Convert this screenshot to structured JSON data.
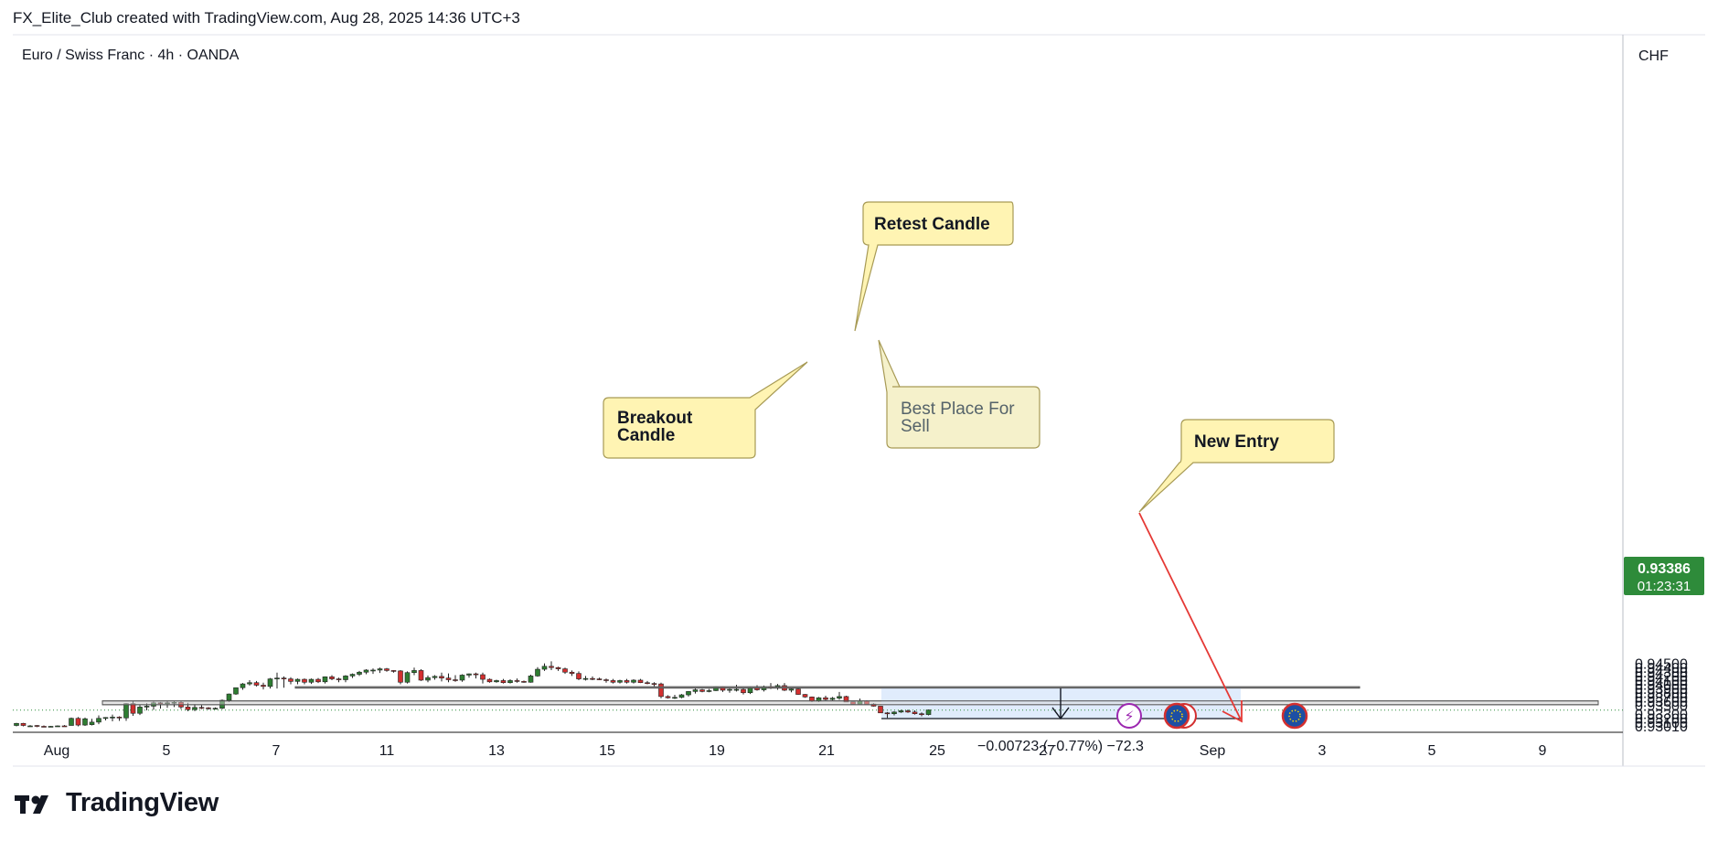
{
  "header": {
    "attribution": "FX_Elite_Club created with TradingView.com, Aug 28, 2025 14:36 UTC+3"
  },
  "symbol": {
    "title": "Euro / Swiss Franc · 4h · OANDA"
  },
  "price_axis": {
    "currency": "CHF",
    "ticks": [
      "0.94500",
      "0.94400",
      "0.94300",
      "0.94200",
      "0.94100",
      "0.94000",
      "0.93900",
      "0.93800",
      "0.93700",
      "0.93600",
      "0.93500",
      "0.93300",
      "0.93200",
      "0.93100",
      "0.93010"
    ],
    "last_price": "0.93386",
    "countdown": "01:23:31"
  },
  "time_axis": {
    "ticks": [
      "Aug",
      "5",
      "7",
      "11",
      "13",
      "15",
      "19",
      "21",
      "25",
      "27",
      "Sep",
      "3",
      "5",
      "9"
    ]
  },
  "annotations": {
    "retest": "Retest Candle",
    "breakout": [
      "Breakout",
      "Candle"
    ],
    "best_place": [
      "Best Place For",
      "Sell"
    ],
    "new_entry": "New Entry",
    "measure": "−0.00723 (−0.77%) −72.3"
  },
  "brand": {
    "name": "TradingView"
  },
  "colors": {
    "up": "#2e7d32",
    "down": "#d32f2f",
    "zone_fill": "#e6e6e6",
    "position_fill": "#dbe9fb",
    "callout_fill": "#fff4b3",
    "last_price": "#2e8b3a",
    "arrow": "#e53935"
  },
  "chart_data": {
    "type": "candlestick",
    "title": "Euro / Swiss Franc · 4h · OANDA",
    "ylim": [
      0.93,
      0.9456
    ],
    "candles": [
      [
        0.9302,
        0.9308,
        0.93,
        0.9307
      ],
      [
        0.9307,
        0.9308,
        0.93,
        0.9302
      ],
      [
        0.93,
        0.9303,
        0.9299,
        0.9301
      ],
      [
        0.9302,
        0.9303,
        0.9298,
        0.9301
      ],
      [
        0.93,
        0.9302,
        0.9298,
        0.9299
      ],
      [
        0.9299,
        0.9301,
        0.9298,
        0.93
      ],
      [
        0.93,
        0.9302,
        0.9299,
        0.9301
      ],
      [
        0.9301,
        0.9303,
        0.9299,
        0.93
      ],
      [
        0.9302,
        0.9321,
        0.9302,
        0.9319
      ],
      [
        0.9319,
        0.9322,
        0.93,
        0.9303
      ],
      [
        0.9303,
        0.9321,
        0.9301,
        0.9318
      ],
      [
        0.9304,
        0.9318,
        0.9302,
        0.931
      ],
      [
        0.931,
        0.9326,
        0.9305,
        0.9319
      ],
      [
        0.9319,
        0.9322,
        0.9314,
        0.9321
      ],
      [
        0.9321,
        0.9328,
        0.9312,
        0.9322
      ],
      [
        0.9322,
        0.9324,
        0.9313,
        0.932
      ],
      [
        0.932,
        0.9355,
        0.9313,
        0.9354
      ],
      [
        0.9354,
        0.936,
        0.9325,
        0.9331
      ],
      [
        0.9331,
        0.935,
        0.9327,
        0.9346
      ],
      [
        0.9346,
        0.9355,
        0.9338,
        0.9348
      ],
      [
        0.9348,
        0.9359,
        0.9339,
        0.9356
      ],
      [
        0.9356,
        0.9358,
        0.9342,
        0.9354
      ],
      [
        0.9354,
        0.936,
        0.9344,
        0.9356
      ],
      [
        0.9356,
        0.9361,
        0.9346,
        0.9357
      ],
      [
        0.9357,
        0.936,
        0.9341,
        0.9346
      ],
      [
        0.9346,
        0.9356,
        0.9336,
        0.934
      ],
      [
        0.934,
        0.9353,
        0.9336,
        0.9345
      ],
      [
        0.9345,
        0.935,
        0.9341,
        0.9344
      ],
      [
        0.9344,
        0.9346,
        0.934,
        0.9342
      ],
      [
        0.9342,
        0.9345,
        0.9341,
        0.9343
      ],
      [
        0.9343,
        0.9364,
        0.9341,
        0.9362
      ],
      [
        0.9362,
        0.9378,
        0.9358,
        0.9377
      ],
      [
        0.9377,
        0.9392,
        0.9375,
        0.9392
      ],
      [
        0.9392,
        0.9403,
        0.9387,
        0.9401
      ],
      [
        0.9401,
        0.941,
        0.9397,
        0.9404
      ],
      [
        0.9404,
        0.9408,
        0.9395,
        0.9398
      ],
      [
        0.9398,
        0.9404,
        0.9388,
        0.9395
      ],
      [
        0.9395,
        0.9415,
        0.939,
        0.9413
      ],
      [
        0.9413,
        0.9428,
        0.939,
        0.9415
      ],
      [
        0.9415,
        0.9419,
        0.9392,
        0.9413
      ],
      [
        0.9413,
        0.9417,
        0.94,
        0.9407
      ],
      [
        0.9407,
        0.9414,
        0.94,
        0.9412
      ],
      [
        0.9412,
        0.9414,
        0.94,
        0.9405
      ],
      [
        0.9405,
        0.9414,
        0.9401,
        0.9412
      ],
      [
        0.9412,
        0.9415,
        0.9403,
        0.9406
      ],
      [
        0.9406,
        0.9419,
        0.9402,
        0.9418
      ],
      [
        0.9418,
        0.9422,
        0.941,
        0.9413
      ],
      [
        0.9413,
        0.9416,
        0.9405,
        0.9411
      ],
      [
        0.9411,
        0.9422,
        0.9405,
        0.942
      ],
      [
        0.942,
        0.9426,
        0.9415,
        0.9424
      ],
      [
        0.9424,
        0.9432,
        0.942,
        0.9429
      ],
      [
        0.9429,
        0.9436,
        0.9424,
        0.9434
      ],
      [
        0.9434,
        0.9438,
        0.9425,
        0.9434
      ],
      [
        0.9434,
        0.944,
        0.9427,
        0.9437
      ],
      [
        0.9437,
        0.9439,
        0.943,
        0.9433
      ],
      [
        0.9433,
        0.9434,
        0.9428,
        0.9432
      ],
      [
        0.9432,
        0.9434,
        0.94,
        0.9405
      ],
      [
        0.9405,
        0.9431,
        0.9402,
        0.9428
      ],
      [
        0.9428,
        0.944,
        0.9422,
        0.9433
      ],
      [
        0.9433,
        0.9436,
        0.9408,
        0.941
      ],
      [
        0.941,
        0.9421,
        0.9405,
        0.9416
      ],
      [
        0.9416,
        0.9422,
        0.9411,
        0.9419
      ],
      [
        0.9419,
        0.9428,
        0.9407,
        0.9415
      ],
      [
        0.9415,
        0.9426,
        0.9405,
        0.9411
      ],
      [
        0.9411,
        0.9422,
        0.9406,
        0.941
      ],
      [
        0.941,
        0.9424,
        0.9406,
        0.9422
      ],
      [
        0.9422,
        0.9426,
        0.9416,
        0.9425
      ],
      [
        0.9425,
        0.9428,
        0.9414,
        0.9423
      ],
      [
        0.9423,
        0.9428,
        0.9402,
        0.9412
      ],
      [
        0.9412,
        0.9414,
        0.9404,
        0.9406
      ],
      [
        0.9406,
        0.9411,
        0.9404,
        0.9409
      ],
      [
        0.9409,
        0.9413,
        0.9402,
        0.9404
      ],
      [
        0.9404,
        0.9412,
        0.9402,
        0.9409
      ],
      [
        0.9409,
        0.9414,
        0.9404,
        0.9407
      ],
      [
        0.9407,
        0.9409,
        0.9404,
        0.9405
      ],
      [
        0.9405,
        0.9423,
        0.9404,
        0.942
      ],
      [
        0.942,
        0.9441,
        0.9418,
        0.9436
      ],
      [
        0.9436,
        0.945,
        0.9432,
        0.9443
      ],
      [
        0.9443,
        0.9455,
        0.9434,
        0.944
      ],
      [
        0.944,
        0.9442,
        0.9432,
        0.9437
      ],
      [
        0.9437,
        0.944,
        0.9425,
        0.9429
      ],
      [
        0.9429,
        0.9433,
        0.942,
        0.9426
      ],
      [
        0.9426,
        0.9431,
        0.941,
        0.9413
      ],
      [
        0.9413,
        0.942,
        0.9409,
        0.9414
      ],
      [
        0.9414,
        0.9419,
        0.941,
        0.9413
      ],
      [
        0.9413,
        0.9416,
        0.941,
        0.9411
      ],
      [
        0.9411,
        0.9414,
        0.9404,
        0.9409
      ],
      [
        0.9409,
        0.9413,
        0.9402,
        0.9405
      ],
      [
        0.9405,
        0.9411,
        0.9402,
        0.9409
      ],
      [
        0.9409,
        0.9413,
        0.9402,
        0.9405
      ],
      [
        0.9405,
        0.9412,
        0.9402,
        0.941
      ],
      [
        0.941,
        0.9413,
        0.9403,
        0.9404
      ],
      [
        0.9404,
        0.9408,
        0.94,
        0.9402
      ],
      [
        0.9402,
        0.9405,
        0.9395,
        0.9401
      ],
      [
        0.9401,
        0.9404,
        0.9367,
        0.9371
      ],
      [
        0.9371,
        0.9374,
        0.9366,
        0.9368
      ],
      [
        0.9368,
        0.9375,
        0.9365,
        0.9369
      ],
      [
        0.9369,
        0.9377,
        0.9367,
        0.9375
      ],
      [
        0.9375,
        0.9384,
        0.9371,
        0.9383
      ],
      [
        0.9383,
        0.939,
        0.9378,
        0.9387
      ],
      [
        0.9387,
        0.9389,
        0.9381,
        0.9383
      ],
      [
        0.9383,
        0.9389,
        0.9381,
        0.9385
      ],
      [
        0.9385,
        0.9395,
        0.9384,
        0.9394
      ],
      [
        0.9394,
        0.9395,
        0.9382,
        0.9386
      ],
      [
        0.9386,
        0.939,
        0.938,
        0.9388
      ],
      [
        0.9388,
        0.9399,
        0.9383,
        0.9388
      ],
      [
        0.9388,
        0.9392,
        0.9376,
        0.938
      ],
      [
        0.938,
        0.9393,
        0.9377,
        0.9392
      ],
      [
        0.9392,
        0.9398,
        0.9385,
        0.9387
      ],
      [
        0.9387,
        0.9397,
        0.9383,
        0.9394
      ],
      [
        0.9394,
        0.9403,
        0.9389,
        0.9393
      ],
      [
        0.9393,
        0.9401,
        0.9387,
        0.9397
      ],
      [
        0.9397,
        0.9403,
        0.9384,
        0.9386
      ],
      [
        0.9386,
        0.939,
        0.9381,
        0.9389
      ],
      [
        0.9389,
        0.9392,
        0.9375,
        0.9376
      ],
      [
        0.9376,
        0.9377,
        0.9368,
        0.937
      ],
      [
        0.937,
        0.9371,
        0.9358,
        0.936
      ],
      [
        0.936,
        0.937,
        0.9358,
        0.9368
      ],
      [
        0.9368,
        0.9373,
        0.9362,
        0.9364
      ],
      [
        0.9364,
        0.937,
        0.9362,
        0.9367
      ],
      [
        0.9367,
        0.9382,
        0.9363,
        0.9371
      ],
      [
        0.9371,
        0.9373,
        0.9358,
        0.9358
      ],
      [
        0.9358,
        0.9358,
        0.9351,
        0.9353
      ],
      [
        0.9353,
        0.9366,
        0.9353,
        0.936
      ],
      [
        0.936,
        0.9362,
        0.9353,
        0.9353
      ],
      [
        0.9353,
        0.9355,
        0.9347,
        0.9348
      ],
      [
        0.9348,
        0.9348,
        0.9332,
        0.9332
      ],
      [
        0.9332,
        0.9334,
        0.932,
        0.933
      ],
      [
        0.933,
        0.9336,
        0.9326,
        0.9334
      ],
      [
        0.9334,
        0.9339,
        0.9332,
        0.9337
      ],
      [
        0.9337,
        0.934,
        0.9332,
        0.9334
      ],
      [
        0.9334,
        0.9338,
        0.9328,
        0.933
      ],
      [
        0.933,
        0.9333,
        0.9324,
        0.9328
      ],
      [
        0.9328,
        0.934,
        0.9326,
        0.9339
      ]
    ],
    "zones": [
      {
        "from": 0.93912,
        "to": 0.93942
      },
      {
        "from": 0.93515,
        "to": 0.93605
      }
    ],
    "measure": {
      "from": 0.93908,
      "to": 0.93185,
      "change": "−0.00723 (−0.77%) −72.3"
    },
    "last_price": 0.93386
  }
}
